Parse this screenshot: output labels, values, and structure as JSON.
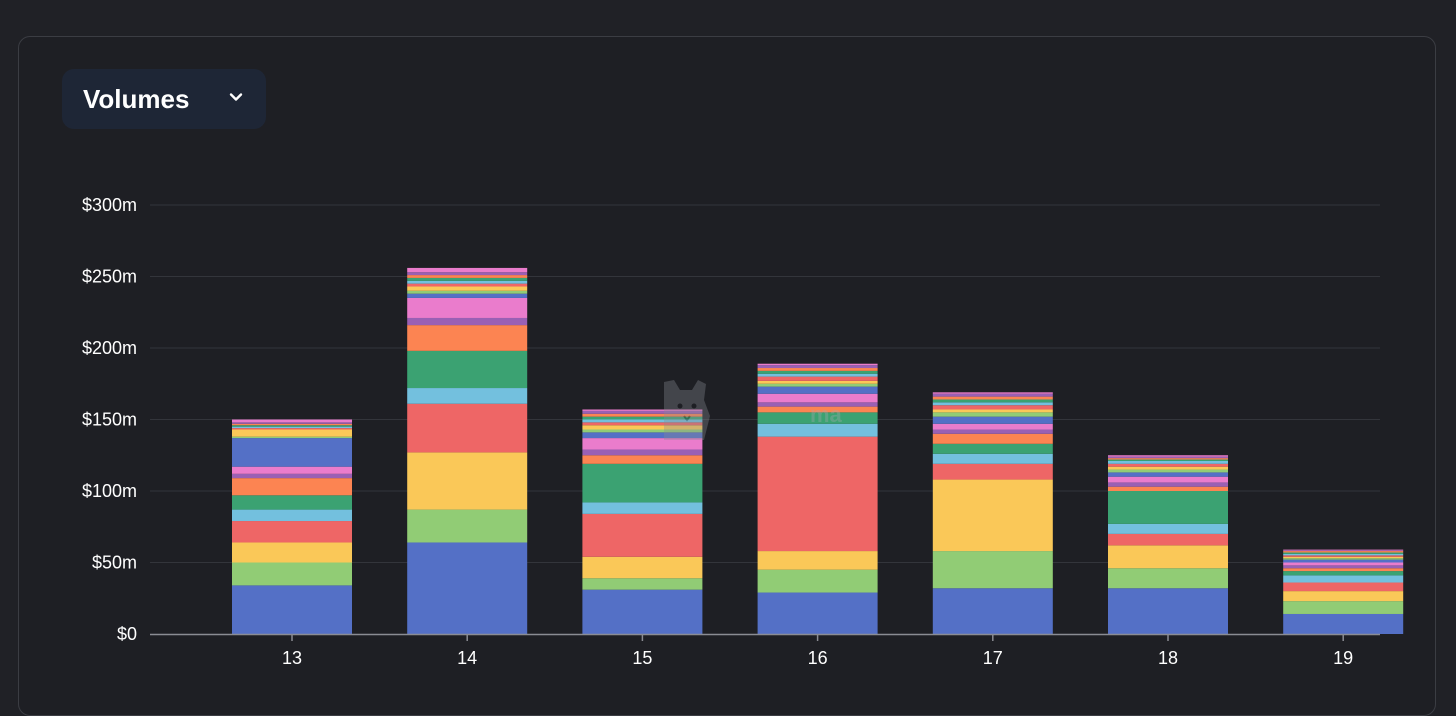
{
  "selector": {
    "label": "Volumes"
  },
  "icons": {
    "chevron": "chevron-down-icon",
    "watermark": "defillama-logo"
  },
  "chart_data": {
    "type": "bar",
    "stacked": true,
    "categories": [
      "13",
      "14",
      "15",
      "16",
      "17",
      "18",
      "19"
    ],
    "y_ticks": [
      "$0",
      "$50m",
      "$100m",
      "$150m",
      "$200m",
      "$250m",
      "$300m"
    ],
    "ylim": [
      0,
      300
    ],
    "y_unit": "$m",
    "grid": true,
    "colors": [
      "#5470c6",
      "#91cc75",
      "#fac858",
      "#ee6666",
      "#73c0de",
      "#3ba272",
      "#fc8452",
      "#9a60b4",
      "#ea7ccc",
      "#5470c6",
      "#91cc75",
      "#fac858",
      "#ee6666",
      "#73c0de",
      "#3ba272",
      "#fc8452",
      "#9a60b4",
      "#ea7ccc"
    ],
    "stacks": [
      [
        34,
        16,
        14,
        15,
        8,
        10,
        12,
        3,
        5,
        20,
        1,
        5,
        1,
        1,
        1,
        1,
        1,
        2
      ],
      [
        64,
        23,
        40,
        34,
        11,
        26,
        18,
        5,
        14,
        3,
        2,
        3,
        2,
        2,
        2,
        2,
        2,
        3
      ],
      [
        31,
        8,
        15,
        30,
        8,
        27,
        6,
        4,
        8,
        4,
        2,
        3,
        2,
        2,
        2,
        2,
        2,
        1
      ],
      [
        29,
        16,
        13,
        80,
        9,
        8,
        4,
        3,
        6,
        5,
        2,
        2,
        3,
        2,
        2,
        2,
        2,
        1
      ],
      [
        32,
        26,
        50,
        11,
        7,
        7,
        7,
        3,
        4,
        5,
        3,
        2,
        3,
        2,
        2,
        2,
        2,
        1
      ],
      [
        32,
        14,
        16,
        8,
        7,
        23,
        3,
        3,
        4,
        3,
        2,
        2,
        2,
        2,
        1,
        1,
        1,
        1
      ],
      [
        14,
        9,
        7,
        6,
        5,
        3,
        2,
        2,
        2,
        2,
        1,
        1,
        1,
        1,
        1,
        1,
        0.5,
        0.5
      ]
    ]
  }
}
